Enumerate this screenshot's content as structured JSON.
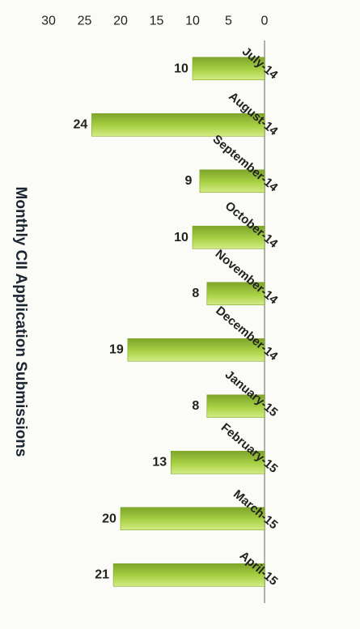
{
  "chart_data": {
    "type": "bar",
    "orientation": "rotated-90-clockwise",
    "title": "Monthly CII Application Submissions",
    "categories": [
      "July-14",
      "August-14",
      "September-14",
      "October-14",
      "November-14",
      "December-14",
      "January-15",
      "February-15",
      "March-15",
      "April-15"
    ],
    "values": [
      10,
      24,
      9,
      10,
      8,
      19,
      8,
      13,
      20,
      21
    ],
    "data_labels": [
      "10",
      "24",
      "9",
      "10",
      "8",
      "19",
      "8",
      "13",
      "20",
      "21"
    ],
    "ylim": [
      0,
      30
    ],
    "yticks": [
      "0",
      "5",
      "10",
      "15",
      "20",
      "25",
      "30"
    ],
    "xlabel": "",
    "ylabel": "",
    "grid": false,
    "legend": "none",
    "colors": {
      "bar_light": "#d4ec86",
      "bar_mid": "#a9d145",
      "bar_dark": "#7ea52a",
      "axis": "#b0b0a8",
      "text": "#222222"
    }
  }
}
